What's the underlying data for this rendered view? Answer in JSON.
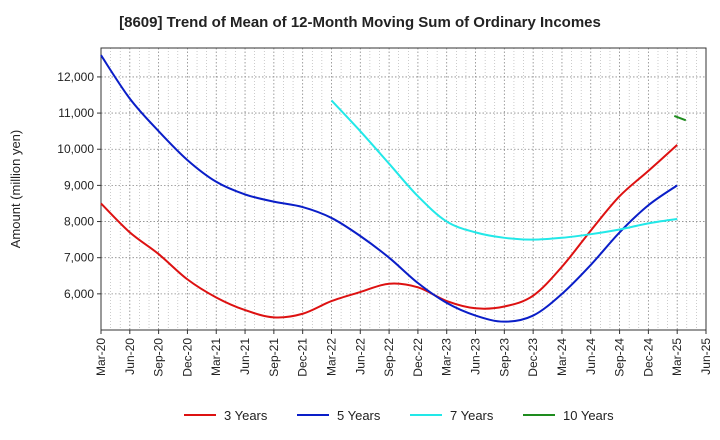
{
  "chart_data": {
    "type": "line",
    "title": "[8609]  Trend of Mean of 12-Month Moving Sum of Ordinary Incomes",
    "xlabel": "",
    "ylabel": "Amount (million yen)",
    "ylim": [
      5000,
      12800
    ],
    "yticks": [
      6000,
      7000,
      8000,
      9000,
      10000,
      11000,
      12000
    ],
    "ytick_labels": [
      "6,000",
      "7,000",
      "8,000",
      "9,000",
      "10,000",
      "11,000",
      "12,000"
    ],
    "xticks": [
      "Mar-20",
      "Jun-20",
      "Sep-20",
      "Dec-20",
      "Mar-21",
      "Jun-21",
      "Sep-21",
      "Dec-21",
      "Mar-22",
      "Jun-22",
      "Sep-22",
      "Dec-22",
      "Mar-23",
      "Jun-23",
      "Sep-23",
      "Dec-23",
      "Mar-24",
      "Jun-24",
      "Sep-24",
      "Dec-24",
      "Mar-25",
      "Jun-25"
    ],
    "grid": true,
    "legend_position": "bottom",
    "series": [
      {
        "name": "3 Years",
        "color": "#dd1111",
        "points": [
          [
            0,
            8500
          ],
          [
            1,
            7700
          ],
          [
            2,
            7100
          ],
          [
            3,
            6400
          ],
          [
            4,
            5900
          ],
          [
            5,
            5550
          ],
          [
            6,
            5350
          ],
          [
            7,
            5450
          ],
          [
            8,
            5800
          ],
          [
            9,
            6050
          ],
          [
            10,
            6280
          ],
          [
            11,
            6180
          ],
          [
            12,
            5800
          ],
          [
            13,
            5600
          ],
          [
            14,
            5650
          ],
          [
            15,
            5950
          ],
          [
            16,
            6750
          ],
          [
            17,
            7750
          ],
          [
            18,
            8700
          ],
          [
            19,
            9400
          ],
          [
            20,
            10120
          ]
        ]
      },
      {
        "name": "5 Years",
        "color": "#0a1ec8",
        "points": [
          [
            0,
            12600
          ],
          [
            1,
            11400
          ],
          [
            2,
            10500
          ],
          [
            3,
            9700
          ],
          [
            4,
            9100
          ],
          [
            5,
            8750
          ],
          [
            6,
            8550
          ],
          [
            7,
            8400
          ],
          [
            8,
            8100
          ],
          [
            9,
            7600
          ],
          [
            10,
            7000
          ],
          [
            11,
            6300
          ],
          [
            12,
            5750
          ],
          [
            13,
            5400
          ],
          [
            14,
            5230
          ],
          [
            15,
            5400
          ],
          [
            16,
            6000
          ],
          [
            17,
            6800
          ],
          [
            18,
            7700
          ],
          [
            19,
            8450
          ],
          [
            20,
            9000
          ]
        ]
      },
      {
        "name": "7 Years",
        "color": "#22e8e8",
        "points": [
          [
            8,
            11350
          ],
          [
            9,
            10500
          ],
          [
            10,
            9600
          ],
          [
            11,
            8700
          ],
          [
            12,
            8000
          ],
          [
            13,
            7700
          ],
          [
            14,
            7550
          ],
          [
            15,
            7500
          ],
          [
            16,
            7550
          ],
          [
            17,
            7650
          ],
          [
            18,
            7780
          ],
          [
            19,
            7950
          ],
          [
            20,
            8070
          ]
        ]
      },
      {
        "name": "10 Years",
        "color": "#1e8c1e",
        "points": [
          [
            19.9,
            10920
          ],
          [
            20.3,
            10800
          ]
        ]
      }
    ]
  }
}
